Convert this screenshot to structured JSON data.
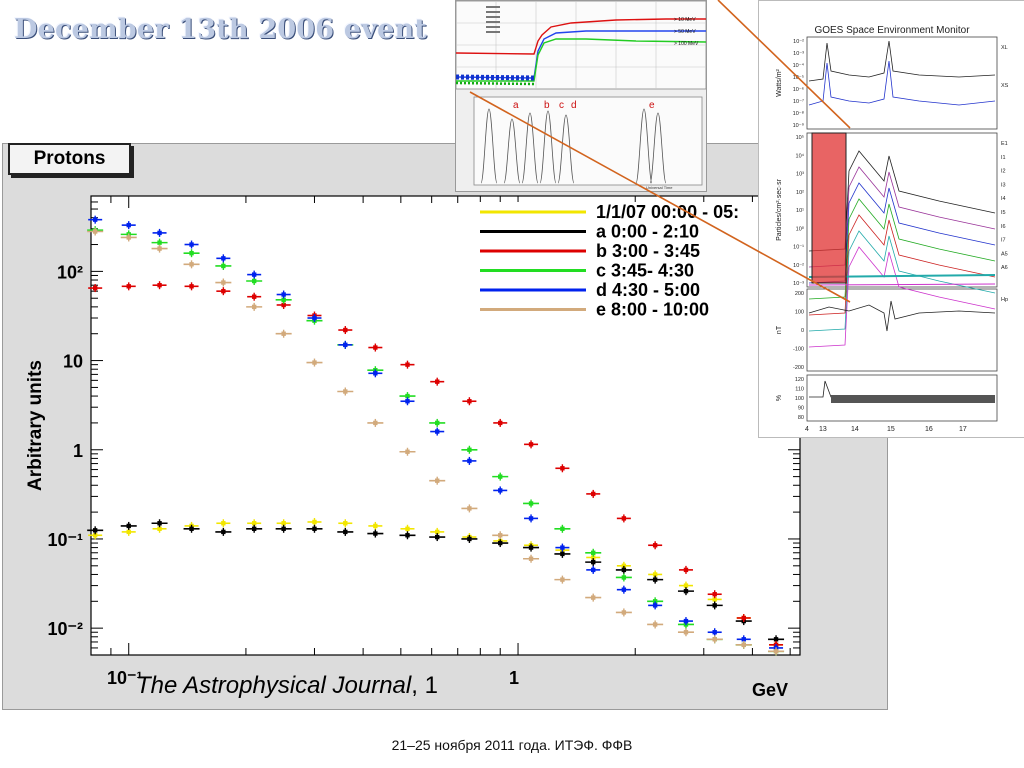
{
  "slide": {
    "title": "December 13th  2006 event",
    "footer": "21–25 ноября 2011 года. ИТЭФ. ФФВ",
    "citation_journal": "The Astrophysical Journal",
    "citation_tail": ", 1"
  },
  "insets": {
    "top_labels": [
      "a",
      "b",
      "c",
      "d",
      "e"
    ],
    "top_energy_labels": [
      "> 10 MeV",
      "> 50 MeV",
      "> 100 MeV"
    ],
    "top_axis_label": "Universal Time",
    "goes_title": "GOES Space Environment Monitor",
    "goes_panels": [
      {
        "ylabel": "Watts/m²",
        "ticks": [
          "10⁻²",
          "10⁻³",
          "10⁻⁴",
          "10⁻⁵",
          "10⁻⁶",
          "10⁻⁷",
          "10⁻⁸",
          "10⁻⁹"
        ],
        "series": [
          "XL",
          "XS"
        ]
      },
      {
        "ylabel": "Particles/cm²·sec·sr",
        "ticks": [
          "10⁵",
          "10⁴",
          "10³",
          "10²",
          "10¹",
          "10⁰",
          "10⁻¹",
          "10⁻²",
          "10⁻³"
        ],
        "series": [
          "E1",
          "I1",
          "I2",
          "I3",
          "I4",
          "I5",
          "I6",
          "I7",
          "A5",
          "A6"
        ]
      },
      {
        "ylabel": "nT",
        "ticks": [
          "200",
          "100",
          "0",
          "-100",
          "-200"
        ],
        "series": [
          "Hp"
        ]
      },
      {
        "ylabel": "%",
        "ticks": [
          "120",
          "110",
          "100",
          "90",
          "80"
        ],
        "series": []
      }
    ],
    "goes_xticks": [
      "4",
      "13",
      "14",
      "15",
      "16",
      "17"
    ],
    "colors": {
      "highlight": "#e03030",
      "connector": "#d2641e"
    }
  },
  "chart_data": {
    "type": "scatter",
    "title": "Protons",
    "xlabel": "GeV",
    "ylabel": "Arbitrary units",
    "x_scale": "log",
    "y_scale": "log",
    "xlim": [
      0.08,
      5.3
    ],
    "ylim": [
      0.005,
      700
    ],
    "x_ticks": [
      {
        "value": 0.1,
        "label": "10⁻¹"
      },
      {
        "value": 1,
        "label": "1"
      }
    ],
    "y_ticks": [
      {
        "value": 0.01,
        "label": "10⁻²"
      },
      {
        "value": 0.1,
        "label": "10⁻¹"
      },
      {
        "value": 1,
        "label": "1"
      },
      {
        "value": 10,
        "label": "10"
      },
      {
        "value": 100,
        "label": "10²"
      }
    ],
    "grid": false,
    "legend_position": "top-right",
    "series": [
      {
        "name": "1/1/07 00:00 - 05:",
        "color": "#f2e600",
        "x": [
          0.082,
          0.1,
          0.12,
          0.145,
          0.175,
          0.21,
          0.25,
          0.3,
          0.36,
          0.43,
          0.52,
          0.62,
          0.75,
          0.9,
          1.08,
          1.3,
          1.56,
          1.87,
          2.25,
          2.7,
          3.2,
          3.8,
          4.6
        ],
        "y": [
          0.11,
          0.12,
          0.13,
          0.14,
          0.15,
          0.15,
          0.15,
          0.155,
          0.15,
          0.14,
          0.13,
          0.12,
          0.105,
          0.095,
          0.085,
          0.075,
          0.062,
          0.05,
          0.04,
          0.03,
          0.021,
          0.013,
          0.0065
        ]
      },
      {
        "name": "a  0:00 - 2:10",
        "color": "#000000",
        "x": [
          0.082,
          0.1,
          0.12,
          0.145,
          0.175,
          0.21,
          0.25,
          0.3,
          0.36,
          0.43,
          0.52,
          0.62,
          0.75,
          0.9,
          1.08,
          1.3,
          1.56,
          1.87,
          2.25,
          2.7,
          3.2,
          3.8,
          4.6
        ],
        "y": [
          0.125,
          0.14,
          0.15,
          0.13,
          0.12,
          0.13,
          0.13,
          0.13,
          0.12,
          0.115,
          0.11,
          0.105,
          0.1,
          0.09,
          0.08,
          0.068,
          0.055,
          0.045,
          0.035,
          0.026,
          0.018,
          0.012,
          0.0075
        ]
      },
      {
        "name": "b  3:00 - 3:45",
        "color": "#dd0000",
        "x": [
          0.082,
          0.1,
          0.12,
          0.145,
          0.175,
          0.21,
          0.25,
          0.3,
          0.36,
          0.43,
          0.52,
          0.62,
          0.75,
          0.9,
          1.08,
          1.3,
          1.56,
          1.87,
          2.25,
          2.7,
          3.2,
          3.8,
          4.6
        ],
        "y": [
          65,
          68,
          70,
          68,
          60,
          52,
          42,
          32,
          22,
          14,
          9,
          5.8,
          3.5,
          2.0,
          1.15,
          0.62,
          0.32,
          0.17,
          0.085,
          0.045,
          0.024,
          0.013,
          0.0065
        ]
      },
      {
        "name": "c  3:45- 4:30",
        "color": "#22dd22",
        "x": [
          0.082,
          0.1,
          0.12,
          0.145,
          0.175,
          0.21,
          0.25,
          0.3,
          0.36,
          0.43,
          0.52,
          0.62,
          0.75,
          0.9,
          1.08,
          1.3,
          1.56,
          1.87,
          2.25,
          2.7,
          3.2,
          3.8,
          4.6
        ],
        "y": [
          290,
          260,
          210,
          160,
          115,
          78,
          48,
          28,
          15,
          7.8,
          4.0,
          2.0,
          1.0,
          0.5,
          0.25,
          0.13,
          0.07,
          0.037,
          0.02,
          0.011,
          0.0075,
          0.0065,
          0.0055
        ]
      },
      {
        "name": "d  4:30 - 5:00",
        "color": "#0022ee",
        "x": [
          0.082,
          0.1,
          0.12,
          0.145,
          0.175,
          0.21,
          0.25,
          0.3,
          0.36,
          0.43,
          0.52,
          0.62,
          0.75,
          0.9,
          1.08,
          1.3,
          1.56,
          1.87,
          2.25,
          2.7,
          3.2,
          3.8,
          4.6
        ],
        "y": [
          380,
          330,
          270,
          200,
          140,
          92,
          55,
          30,
          15,
          7.2,
          3.5,
          1.6,
          0.75,
          0.35,
          0.17,
          0.08,
          0.045,
          0.027,
          0.018,
          0.012,
          0.009,
          0.0075,
          0.006
        ]
      },
      {
        "name": "e  8:00 - 10:00",
        "color": "#d2aa7c",
        "x": [
          0.082,
          0.1,
          0.12,
          0.145,
          0.175,
          0.21,
          0.25,
          0.3,
          0.36,
          0.43,
          0.52,
          0.62,
          0.75,
          0.9,
          1.08,
          1.3,
          1.56,
          1.87,
          2.25,
          2.7,
          3.2,
          3.8,
          4.6
        ],
        "y": [
          280,
          240,
          180,
          120,
          75,
          40,
          20,
          9.5,
          4.5,
          2.0,
          0.95,
          0.45,
          0.22,
          0.11,
          0.06,
          0.035,
          0.022,
          0.015,
          0.011,
          0.009,
          0.0075,
          0.0065,
          0.0055
        ]
      }
    ]
  }
}
